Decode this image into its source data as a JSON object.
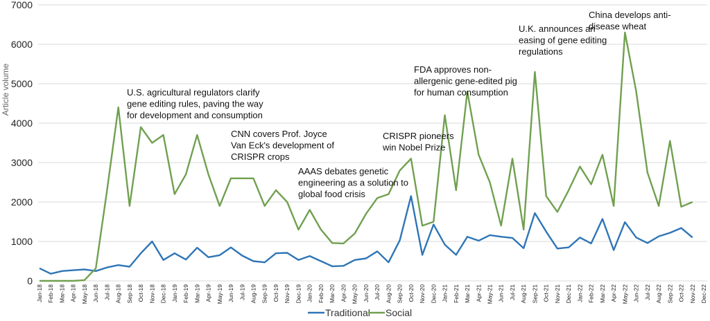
{
  "chart_data": {
    "type": "line",
    "title": "",
    "xlabel": "",
    "ylabel": "Article volume",
    "ylim": [
      0,
      7000
    ],
    "yticks": [
      0,
      1000,
      2000,
      3000,
      4000,
      5000,
      6000,
      7000
    ],
    "grid": true,
    "legend_position": "bottom-center",
    "categories": [
      "Jan-18",
      "Feb-18",
      "Mar-18",
      "Apr-18",
      "May-18",
      "Jun-18",
      "Jul-18",
      "Aug-18",
      "Sep-18",
      "Oct-18",
      "Nov-18",
      "Dec-18",
      "Jan-19",
      "Feb-19",
      "Mar-19",
      "Apr-19",
      "May-19",
      "Jun-19",
      "Jul-19",
      "Aug-19",
      "Sep-19",
      "Oct-19",
      "Nov-19",
      "Dec-19",
      "Jan-20",
      "Feb-20",
      "Mar-20",
      "Apr-20",
      "May-20",
      "Jun-20",
      "Jul-20",
      "Aug-20",
      "Sep-20",
      "Oct-20",
      "Nov-20",
      "Dec-20",
      "Jan-21",
      "Feb-21",
      "Mar-21",
      "Apr-21",
      "May-21",
      "Jun-21",
      "Jul-21",
      "Aug-21",
      "Sep-21",
      "Oct-21",
      "Nov-21",
      "Dec-21",
      "Jan-22",
      "Feb-22",
      "Mar-22",
      "Apr-22",
      "May-22",
      "Jun-22",
      "Jul-22",
      "Aug-22",
      "Sep-22",
      "Oct-22",
      "Nov-22",
      "Dec-22"
    ],
    "series": [
      {
        "name": "Traditional",
        "color": "#2e75b6",
        "values": [
          320,
          180,
          250,
          270,
          290,
          250,
          340,
          400,
          360,
          700,
          1000,
          530,
          700,
          540,
          840,
          600,
          650,
          850,
          640,
          500,
          470,
          700,
          710,
          530,
          630,
          500,
          370,
          380,
          530,
          570,
          750,
          470,
          1030,
          2150,
          660,
          1430,
          920,
          660,
          1120,
          1020,
          1160,
          1120,
          1090,
          830,
          1720,
          1250,
          820,
          850,
          1100,
          950,
          1570,
          780,
          1490,
          1100,
          960,
          1130,
          1220,
          1340,
          1100,
          null
        ]
      },
      {
        "name": "Social",
        "color": "#70a050",
        "values": [
          0,
          0,
          0,
          0,
          20,
          320,
          2300,
          4400,
          1900,
          3900,
          3500,
          3700,
          2200,
          2700,
          3700,
          2700,
          1900,
          2600,
          2600,
          2600,
          1900,
          2300,
          2000,
          1300,
          1800,
          1300,
          960,
          950,
          1200,
          1700,
          2100,
          2200,
          2800,
          3100,
          1400,
          1500,
          4200,
          2300,
          4800,
          3200,
          2500,
          1400,
          3100,
          1300,
          5300,
          2150,
          1750,
          2300,
          2900,
          2450,
          3200,
          1900,
          6300,
          4800,
          2750,
          1900,
          3550,
          1880,
          2000,
          null
        ]
      }
    ],
    "annotations": [
      {
        "lines": [
          "U.S. agricultural regulators clarify",
          "gene editing rules, paving the way",
          "for development and consumption"
        ]
      },
      {
        "lines": [
          "CNN covers Prof. Joyce",
          "Van Eck's development of",
          "CRISPR crops"
        ]
      },
      {
        "lines": [
          "AAAS debates genetic",
          "engineering as a solution to",
          "global food crisis"
        ]
      },
      {
        "lines": [
          "CRISPR pioneers",
          "win Nobel Prize"
        ]
      },
      {
        "lines": [
          "FDA approves non-",
          "allergenic gene-edited pig",
          "for human consumption"
        ]
      },
      {
        "lines": [
          "U.K. announces an",
          "easing of gene editing",
          "regulations"
        ]
      },
      {
        "lines": [
          "China develops anti-",
          "disease wheat"
        ]
      }
    ]
  }
}
